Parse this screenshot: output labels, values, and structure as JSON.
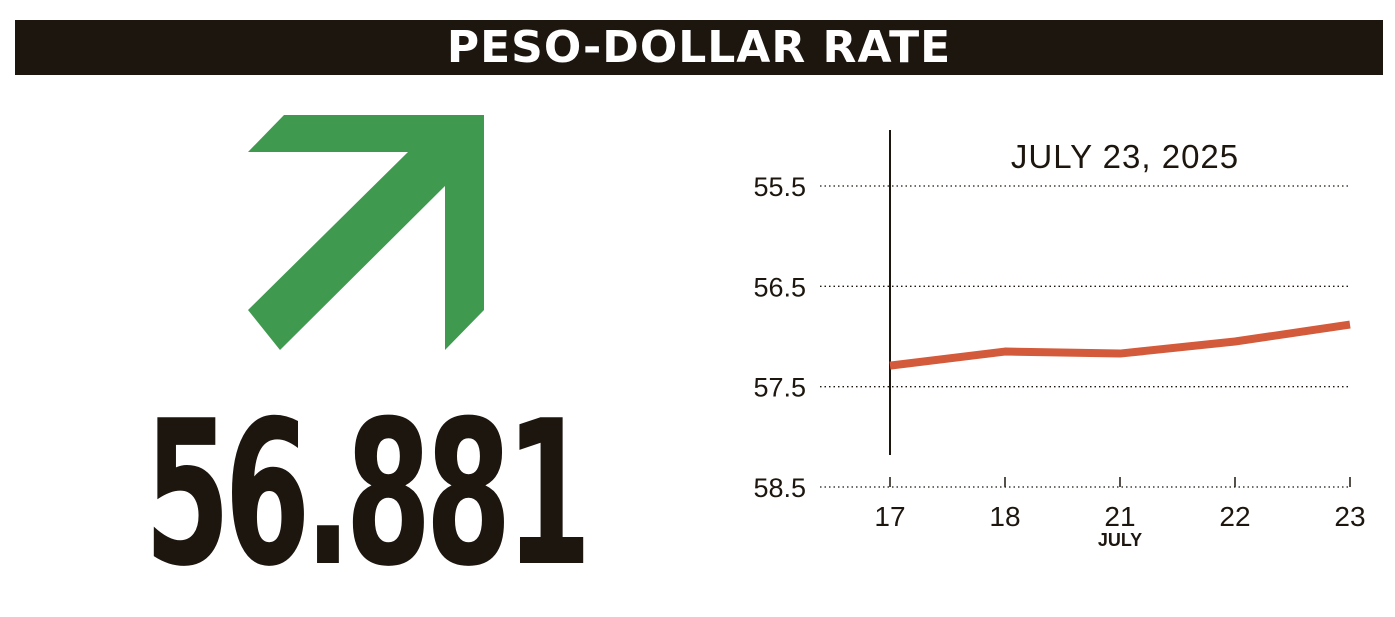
{
  "header": {
    "title": "PESO-DOLLAR RATE"
  },
  "rate": {
    "value": "56.881",
    "direction": "up",
    "arrow_color": "#3f9a4f"
  },
  "chart_data": {
    "type": "line",
    "title": "JULY 23, 2025",
    "xlabel": "JULY",
    "ylabel": "",
    "categories": [
      "17",
      "18",
      "21",
      "22",
      "23"
    ],
    "series": [
      {
        "values": [
          57.29,
          57.15,
          57.17,
          57.05,
          56.881
        ],
        "color": "#d35a3a"
      }
    ],
    "y_ticks": [
      "55.5",
      "56.5",
      "57.5",
      "58.5"
    ],
    "ylim": [
      55.5,
      58.5
    ],
    "y_inverted": true,
    "grid": "horizontal-dotted"
  }
}
